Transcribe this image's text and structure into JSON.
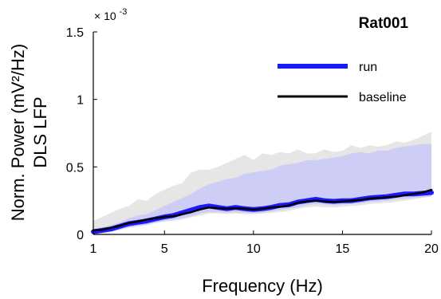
{
  "chart_data": {
    "type": "line",
    "title": "Rat001",
    "xlabel": "Frequency (Hz)",
    "ylabel_line1": "Norm. Power (mV²/Hz)",
    "ylabel_line2": "DLS LFP",
    "y_multiplier": "× 10",
    "y_multiplier_exp": "-3",
    "xlim": [
      1,
      20
    ],
    "ylim": [
      0,
      1.5
    ],
    "x_ticks": [
      1,
      5,
      10,
      15,
      20
    ],
    "y_ticks": [
      0,
      0.5,
      1,
      1.5
    ],
    "y_tick_labels": [
      "0",
      "0.5",
      "1",
      "1.5"
    ],
    "grid": false,
    "legend_position": "top-right",
    "x": [
      1,
      1.5,
      2,
      2.5,
      3,
      3.5,
      4,
      4.5,
      5,
      5.5,
      6,
      6.5,
      7,
      7.5,
      8,
      8.5,
      9,
      9.5,
      10,
      10.5,
      11,
      11.5,
      12,
      12.5,
      13,
      13.5,
      14,
      14.5,
      15,
      15.5,
      16,
      16.5,
      17,
      17.5,
      18,
      18.5,
      19,
      19.5,
      20
    ],
    "series": [
      {
        "name": "run",
        "color": "#1a1aff",
        "band_color": "#c8c8f8",
        "mean": [
          0.02,
          0.03,
          0.04,
          0.06,
          0.08,
          0.09,
          0.1,
          0.115,
          0.13,
          0.14,
          0.16,
          0.18,
          0.2,
          0.21,
          0.2,
          0.19,
          0.2,
          0.19,
          0.185,
          0.19,
          0.2,
          0.215,
          0.22,
          0.24,
          0.25,
          0.26,
          0.25,
          0.245,
          0.25,
          0.25,
          0.26,
          0.27,
          0.275,
          0.28,
          0.29,
          0.3,
          0.3,
          0.305,
          0.31
        ],
        "band_low": [
          0.005,
          0.01,
          0.02,
          0.035,
          0.05,
          0.06,
          0.07,
          0.085,
          0.1,
          0.11,
          0.12,
          0.135,
          0.155,
          0.165,
          0.165,
          0.16,
          0.165,
          0.16,
          0.155,
          0.16,
          0.17,
          0.18,
          0.19,
          0.2,
          0.215,
          0.225,
          0.22,
          0.215,
          0.22,
          0.225,
          0.23,
          0.24,
          0.245,
          0.25,
          0.26,
          0.265,
          0.27,
          0.275,
          0.28
        ],
        "band_high": [
          0.04,
          0.05,
          0.07,
          0.09,
          0.12,
          0.14,
          0.15,
          0.18,
          0.21,
          0.24,
          0.27,
          0.3,
          0.34,
          0.37,
          0.39,
          0.41,
          0.42,
          0.45,
          0.46,
          0.47,
          0.48,
          0.51,
          0.52,
          0.53,
          0.55,
          0.55,
          0.56,
          0.57,
          0.58,
          0.6,
          0.61,
          0.6,
          0.62,
          0.62,
          0.64,
          0.65,
          0.66,
          0.67,
          0.67
        ]
      },
      {
        "name": "baseline",
        "color": "#000000",
        "band_color": "#e6e6e6",
        "mean": [
          0.03,
          0.035,
          0.05,
          0.065,
          0.085,
          0.095,
          0.11,
          0.12,
          0.13,
          0.135,
          0.15,
          0.165,
          0.185,
          0.2,
          0.195,
          0.19,
          0.195,
          0.19,
          0.185,
          0.19,
          0.2,
          0.205,
          0.215,
          0.235,
          0.245,
          0.25,
          0.245,
          0.24,
          0.245,
          0.25,
          0.255,
          0.265,
          0.27,
          0.275,
          0.28,
          0.29,
          0.3,
          0.31,
          0.33
        ],
        "band_low": [
          0.01,
          0.015,
          0.025,
          0.04,
          0.055,
          0.065,
          0.075,
          0.085,
          0.095,
          0.1,
          0.11,
          0.125,
          0.14,
          0.155,
          0.155,
          0.15,
          0.155,
          0.15,
          0.15,
          0.155,
          0.16,
          0.165,
          0.175,
          0.19,
          0.2,
          0.205,
          0.2,
          0.2,
          0.205,
          0.21,
          0.215,
          0.225,
          0.23,
          0.235,
          0.24,
          0.25,
          0.26,
          0.27,
          0.28
        ],
        "band_high": [
          0.1,
          0.13,
          0.16,
          0.19,
          0.21,
          0.26,
          0.25,
          0.3,
          0.33,
          0.36,
          0.38,
          0.46,
          0.48,
          0.48,
          0.5,
          0.53,
          0.56,
          0.59,
          0.55,
          0.6,
          0.59,
          0.61,
          0.6,
          0.63,
          0.6,
          0.6,
          0.63,
          0.61,
          0.62,
          0.66,
          0.64,
          0.66,
          0.65,
          0.66,
          0.69,
          0.68,
          0.7,
          0.73,
          0.76
        ]
      }
    ]
  }
}
